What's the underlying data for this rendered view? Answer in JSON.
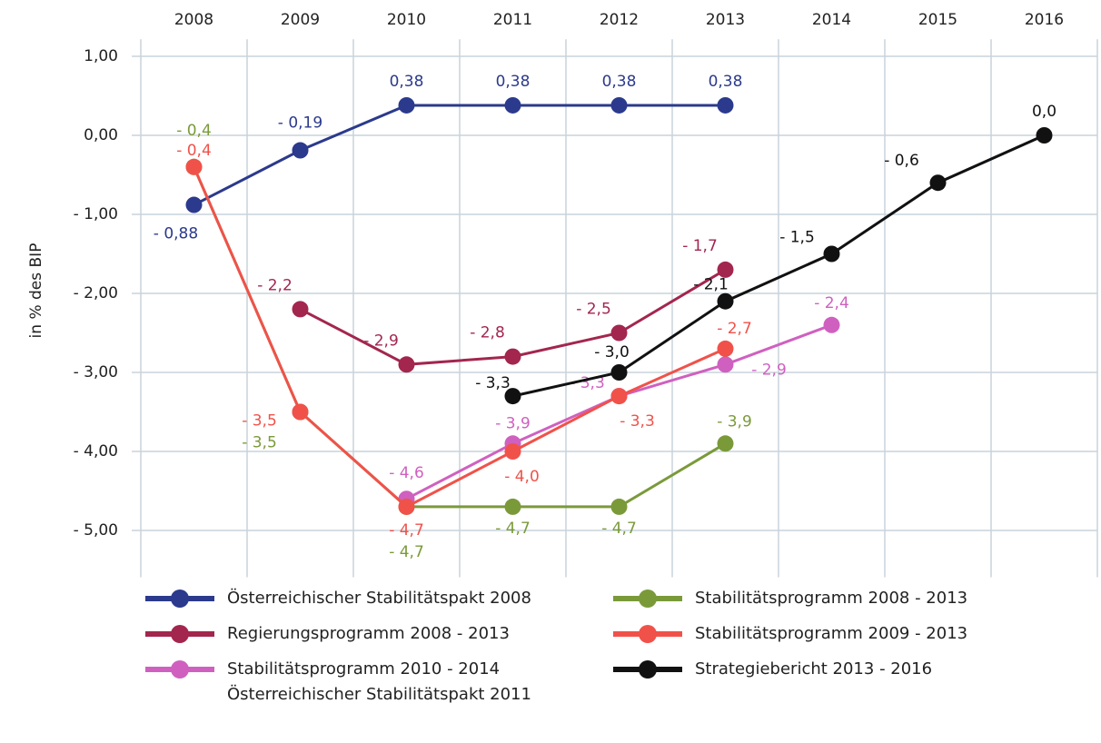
{
  "chart_data": {
    "type": "line",
    "y_label": "in % des BIP",
    "categories": [
      "2008",
      "2009",
      "2010",
      "2011",
      "2012",
      "2013",
      "2014",
      "2015",
      "2016"
    ],
    "ylim": [
      -5.5,
      1.1
    ],
    "yticks": [
      {
        "value": 1,
        "label": "1,00"
      },
      {
        "value": 0,
        "label": "0,00"
      },
      {
        "value": -1,
        "label": "- 1,00"
      },
      {
        "value": -2,
        "label": "- 2,00"
      },
      {
        "value": -3,
        "label": "- 3,00"
      },
      {
        "value": -4,
        "label": "- 4,00"
      },
      {
        "value": -5,
        "label": "- 5,00"
      }
    ],
    "grid": true,
    "series": [
      {
        "name": "Österreichischer Stabilitätspakt 2008",
        "color": "#2b3a8c",
        "values": [
          -0.88,
          -0.19,
          0.38,
          0.38,
          0.38,
          0.38,
          null,
          null,
          null
        ],
        "value_labels": [
          "- 0,88",
          "- 0,19",
          "0,38",
          "0,38",
          "0,38",
          "0,38",
          null,
          null,
          null
        ]
      },
      {
        "name": "Regierungsprogramm 2008 - 2013",
        "color": "#a3264e",
        "values": [
          null,
          -2.2,
          -2.9,
          -2.8,
          -2.5,
          -1.7,
          null,
          null,
          null
        ],
        "value_labels": [
          null,
          "- 2,2",
          "- 2,9",
          "- 2,8",
          "- 2,5",
          "- 1,7",
          null,
          null,
          null
        ]
      },
      {
        "name": "Stabilitätsprogramm 2010 - 2014\nÖsterreichischer Stabilitätspakt 2011",
        "color": "#d060c0",
        "values": [
          null,
          null,
          -4.6,
          -3.9,
          -3.3,
          -2.9,
          -2.4,
          null,
          null
        ],
        "value_labels": [
          null,
          null,
          "- 4,6",
          "- 3,9",
          "- 3,3",
          "- 2,9",
          "- 2,4",
          null,
          null
        ]
      },
      {
        "name": "Stabilitätsprogramm 2008 - 2013",
        "color": "#7a9a3a",
        "values": [
          -0.4,
          -3.5,
          -4.7,
          -4.7,
          -4.7,
          -3.9,
          null,
          null,
          null
        ],
        "value_labels": [
          "- 0,4",
          "- 3,5",
          "- 4,7",
          "- 4,7",
          "- 4,7",
          "- 3,9",
          null,
          null,
          null
        ]
      },
      {
        "name": "Stabilitätsprogramm 2009 - 2013",
        "color": "#f0524a",
        "values": [
          -0.4,
          -3.5,
          -4.7,
          -4.0,
          -3.3,
          -2.7,
          null,
          null,
          null
        ],
        "value_labels": [
          "- 0,4",
          "- 3,5",
          "- 4,7",
          "- 4,0",
          "- 3,3",
          "- 2,7",
          null,
          null,
          null
        ]
      },
      {
        "name": "Strategiebericht 2013 - 2016",
        "color": "#111111",
        "values": [
          null,
          null,
          null,
          -3.3,
          -3.0,
          -2.1,
          -1.5,
          -0.6,
          0.0
        ],
        "value_labels": [
          null,
          null,
          null,
          "- 3,3",
          "- 3,0",
          "- 2,1",
          "- 1,5",
          "- 0,6",
          "0,0"
        ]
      }
    ]
  }
}
